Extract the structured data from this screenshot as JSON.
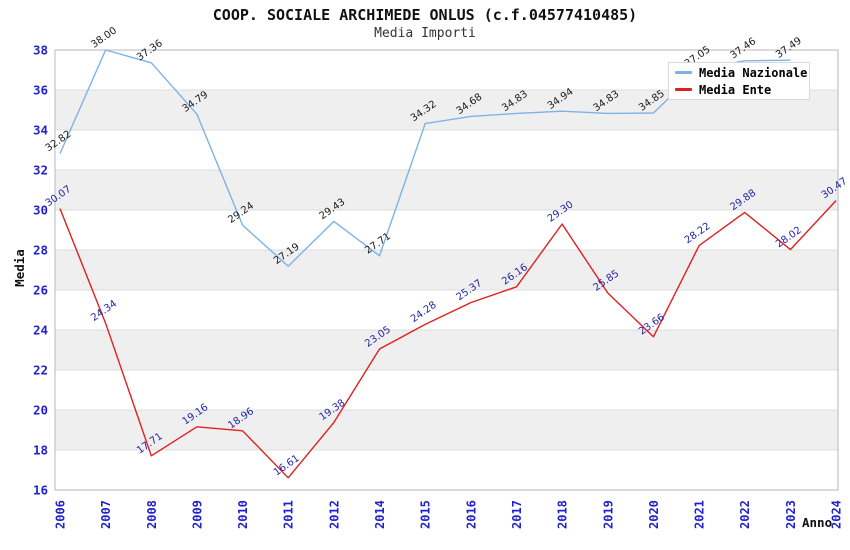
{
  "header": {
    "title": "COOP. SOCIALE ARCHIMEDE ONLUS (c.f.04577410485)",
    "subtitle": "Media Importi"
  },
  "legend": {
    "position": "top-right",
    "items": [
      {
        "label": "Media Nazionale",
        "color": "#7fb2e5"
      },
      {
        "label": "Media Ente",
        "color": "#e02020"
      }
    ]
  },
  "colors": {
    "nazionale_line": "#7fb2e5",
    "ente_line": "#e02020",
    "nazionale_value_labels": "#1a1a1a",
    "ente_value_labels": "#2323a8",
    "axis_tick_labels": "#2222cc",
    "band_gray": "#efefef",
    "gridline": "#dcdcdc",
    "plot_border": "#b8b8b8"
  },
  "chart_data": {
    "type": "line",
    "title": "COOP. SOCIALE ARCHIMEDE ONLUS (c.f.04577410485)",
    "subtitle": "Media Importi",
    "xlabel": "Anno",
    "ylabel": "Media",
    "ylim": [
      16,
      38
    ],
    "y_tick_step": 2,
    "y_ticks": [
      16,
      18,
      20,
      22,
      24,
      26,
      28,
      30,
      32,
      34,
      36,
      38
    ],
    "grid": "horizontal gridlines with alternating gray bands",
    "legend_position": "top-right overlapping plot",
    "categories": [
      "2006",
      "2007",
      "2008",
      "2009",
      "2010",
      "2011",
      "2012",
      "2014",
      "2015",
      "2016",
      "2017",
      "2018",
      "2019",
      "2020",
      "2021",
      "2022",
      "2023",
      "2024"
    ],
    "note_2013_missing": "year 2013 is absent from the x axis",
    "series": [
      {
        "name": "Media Nazionale",
        "color": "#7fb2e5",
        "label_color": "#1a1a1a",
        "values": [
          32.82,
          38.0,
          37.36,
          34.79,
          29.24,
          27.19,
          29.43,
          27.71,
          34.32,
          34.68,
          34.83,
          34.94,
          34.83,
          34.85,
          37.05,
          37.46,
          37.49,
          null
        ]
      },
      {
        "name": "Media Ente",
        "color": "#e02020",
        "label_color": "#2323a8",
        "values": [
          30.07,
          24.34,
          17.71,
          19.16,
          18.96,
          16.61,
          19.38,
          23.05,
          24.28,
          25.37,
          26.16,
          29.3,
          25.85,
          23.66,
          28.22,
          29.88,
          28.02,
          30.47
        ]
      }
    ]
  }
}
